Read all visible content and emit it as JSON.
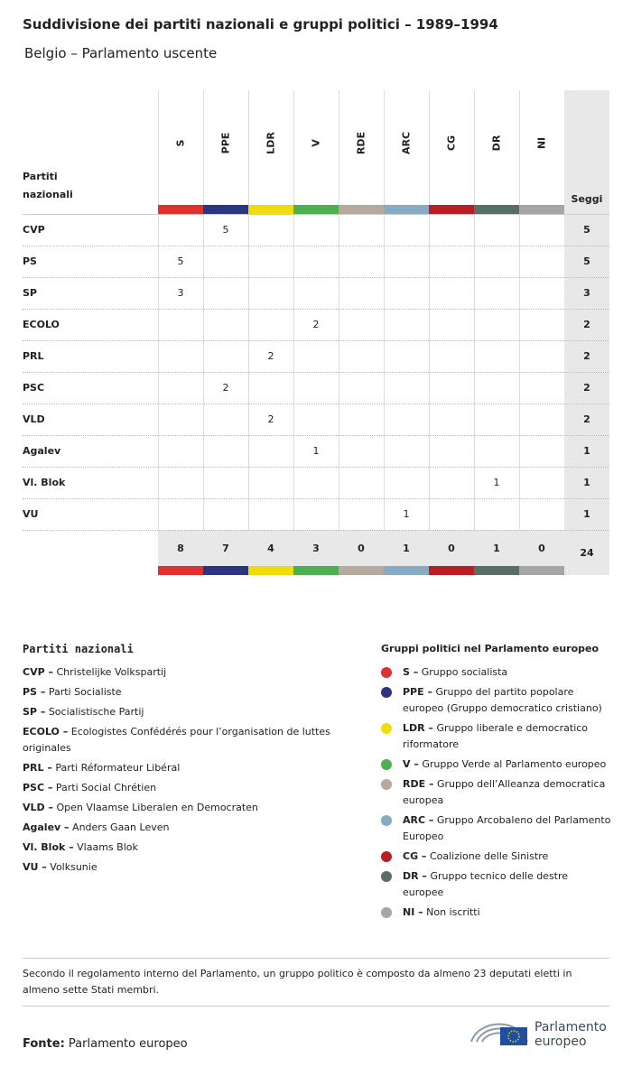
{
  "header": {
    "title": "Suddivisione dei partiti nazionali e gruppi politici – 1989–1994",
    "subtitle": "Belgio – Parlamento uscente"
  },
  "table": {
    "row_header": "Partiti nazionali",
    "total_header": "Seggi",
    "groups": [
      {
        "code": "S",
        "color": "#e03131"
      },
      {
        "code": "PPE",
        "color": "#2b3580"
      },
      {
        "code": "LDR",
        "color": "#f0dc0a"
      },
      {
        "code": "V",
        "color": "#4caf50"
      },
      {
        "code": "RDE",
        "color": "#b5aa9b"
      },
      {
        "code": "ARC",
        "color": "#86abc3"
      },
      {
        "code": "CG",
        "color": "#b81f24"
      },
      {
        "code": "DR",
        "color": "#5a6e68"
      },
      {
        "code": "NI",
        "color": "#a6a6a6"
      }
    ],
    "rows": [
      {
        "party": "CVP",
        "seats": [
          null,
          5,
          null,
          null,
          null,
          null,
          null,
          null,
          null
        ],
        "total": 5
      },
      {
        "party": "PS",
        "seats": [
          5,
          null,
          null,
          null,
          null,
          null,
          null,
          null,
          null
        ],
        "total": 5
      },
      {
        "party": "SP",
        "seats": [
          3,
          null,
          null,
          null,
          null,
          null,
          null,
          null,
          null
        ],
        "total": 3
      },
      {
        "party": "ECOLO",
        "seats": [
          null,
          null,
          null,
          2,
          null,
          null,
          null,
          null,
          null
        ],
        "total": 2
      },
      {
        "party": "PRL",
        "seats": [
          null,
          null,
          2,
          null,
          null,
          null,
          null,
          null,
          null
        ],
        "total": 2
      },
      {
        "party": "PSC",
        "seats": [
          null,
          2,
          null,
          null,
          null,
          null,
          null,
          null,
          null
        ],
        "total": 2
      },
      {
        "party": "VLD",
        "seats": [
          null,
          null,
          2,
          null,
          null,
          null,
          null,
          null,
          null
        ],
        "total": 2
      },
      {
        "party": "Agalev",
        "seats": [
          null,
          null,
          null,
          1,
          null,
          null,
          null,
          null,
          null
        ],
        "total": 1
      },
      {
        "party": "Vl. Blok",
        "seats": [
          null,
          null,
          null,
          null,
          null,
          null,
          null,
          1,
          null
        ],
        "total": 1
      },
      {
        "party": "VU",
        "seats": [
          null,
          null,
          null,
          null,
          null,
          1,
          null,
          null,
          null
        ],
        "total": 1
      }
    ],
    "group_totals": [
      8,
      7,
      4,
      3,
      0,
      1,
      0,
      1,
      0
    ],
    "grand_total": 24
  },
  "parties_legend": {
    "title": "Partiti nazionali",
    "items": [
      {
        "code": "CVP –",
        "name": "Christelijke Volkspartij"
      },
      {
        "code": "PS –",
        "name": "Parti Socialiste"
      },
      {
        "code": "SP –",
        "name": "Socialistische Partij"
      },
      {
        "code": "ECOLO –",
        "name": "Ecologistes Confédérés pour l’organisation de luttes originales"
      },
      {
        "code": "PRL –",
        "name": "Parti Réformateur Libéral"
      },
      {
        "code": "PSC –",
        "name": "Parti Social Chrétien"
      },
      {
        "code": "VLD –",
        "name": "Open Vlaamse Liberalen en Democraten"
      },
      {
        "code": "Agalev –",
        "name": "Anders Gaan Leven"
      },
      {
        "code": "Vl. Blok –",
        "name": "Vlaams Blok"
      },
      {
        "code": "VU –",
        "name": "Volksunie"
      }
    ]
  },
  "groups_legend": {
    "title": "Gruppi politici nel Parlamento europeo",
    "items": [
      {
        "code": "S –",
        "name": "Gruppo socialista"
      },
      {
        "code": "PPE –",
        "name": "Gruppo del partito popolare europeo (Gruppo democratico cristiano)"
      },
      {
        "code": "LDR –",
        "name": "Gruppo liberale e democratico riformatore"
      },
      {
        "code": "V –",
        "name": "Gruppo Verde al Parlamento europeo"
      },
      {
        "code": "RDE –",
        "name": "Gruppo dell’Alleanza democratica europea"
      },
      {
        "code": "ARC –",
        "name": "Gruppo Arcobaleno del Parlamento Europeo"
      },
      {
        "code": "CG –",
        "name": "Coalizione delle Sinistre"
      },
      {
        "code": "DR –",
        "name": "Gruppo tecnico delle destre europee"
      },
      {
        "code": "NI –",
        "name": "Non iscritti"
      }
    ]
  },
  "note": "Secondo il regolamento interno del Parlamento, un gruppo politico è composto da almeno 23 deputati eletti in almeno sette Stati membri.",
  "source": {
    "label": "Fonte:",
    "text": "Parlamento europeo"
  },
  "logo": {
    "line1": "Parlamento",
    "line2": "europeo"
  }
}
